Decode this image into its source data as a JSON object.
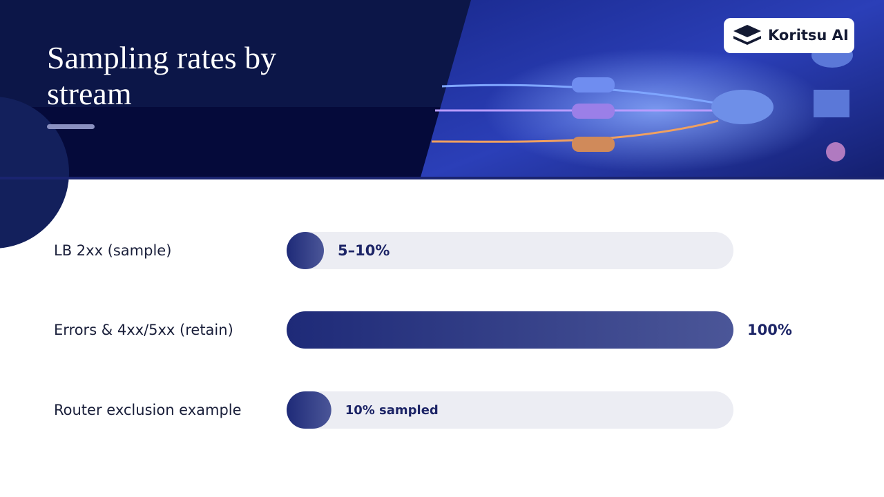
{
  "chart_data": {
    "type": "hbar",
    "title": "Sampling rates by stream",
    "brand": "Koritsu AI",
    "categories": [
      "LB 2xx (sample)",
      "Errors & 4xx/5xx (retain)",
      "Router exclusion example"
    ],
    "values": [
      5,
      100,
      10
    ],
    "value_labels": [
      "5–10%",
      "100%",
      "10% sampled"
    ],
    "xlim": [
      0,
      100
    ],
    "color": "#1e2a78"
  }
}
